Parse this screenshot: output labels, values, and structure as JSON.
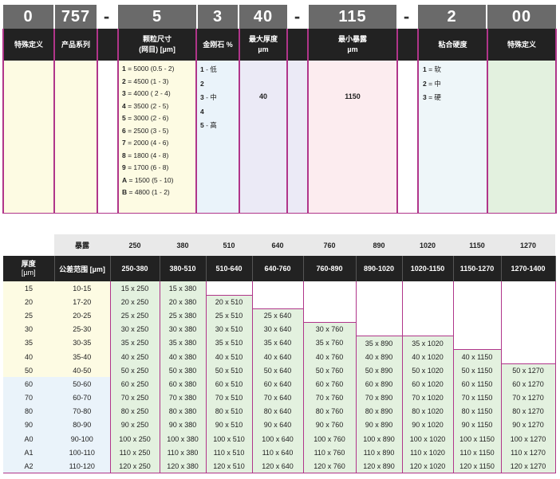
{
  "code": {
    "segments": [
      "0",
      "757",
      "-",
      "5",
      "3",
      "40",
      "-",
      "115",
      "-",
      "2",
      "00"
    ]
  },
  "headers": {
    "special1": "特殊定义",
    "series": "产品系列",
    "grit_title": "颗粒尺寸",
    "grit_sub": "(网目) [µm]",
    "diamond": "金刚石 %",
    "maxthick_title": "最大厚度",
    "maxthick_unit": "µm",
    "minexp_title": "最小暴露",
    "minexp_unit": "µm",
    "hardness": "粘合硬度",
    "special2": "特殊定义"
  },
  "grit_list": [
    {
      "code": "1",
      "text": " = 5000 (0.5 - 2)"
    },
    {
      "code": "2",
      "text": " = 4500 (1 - 3)"
    },
    {
      "code": "3",
      "text": " = 4000 ( 2 - 4)"
    },
    {
      "code": "4",
      "text": " = 3500 (2 - 5)"
    },
    {
      "code": "5",
      "text": " = 3000 (2 - 6)"
    },
    {
      "code": "6",
      "text": " = 2500 (3 - 5)"
    },
    {
      "code": "7",
      "text": " = 2000 (4 - 6)"
    },
    {
      "code": "8",
      "text": " = 1800 (4 - 8)"
    },
    {
      "code": "9",
      "text": " = 1700 (6 - 8)"
    },
    {
      "code": "A",
      "text": " = 1500 (5 - 10)"
    },
    {
      "code": "B",
      "text": " = 4800 (1 - 2)"
    }
  ],
  "diamond_list": [
    {
      "code": "1",
      "text": " - 低"
    },
    {
      "code": "2",
      "text": ""
    },
    {
      "code": "3",
      "text": " - 中"
    },
    {
      "code": "4",
      "text": ""
    },
    {
      "code": "5",
      "text": " - 高"
    }
  ],
  "maxthick_value": "40",
  "minexp_value": "1150",
  "hardness_list": [
    {
      "code": "1",
      "text": " = 软"
    },
    {
      "code": "2",
      "text": " = 中"
    },
    {
      "code": "3",
      "text": " = 硬"
    }
  ],
  "table": {
    "exposure_label": "暴露",
    "exposures": [
      "250",
      "380",
      "510",
      "640",
      "760",
      "890",
      "1020",
      "1150",
      "1270"
    ],
    "thickness_label": "厚度",
    "thickness_unit": "[µm]",
    "tolerance_label": "公差范围 [µm]",
    "ranges": [
      "250-380",
      "380-510",
      "510-640",
      "640-760",
      "760-890",
      "890-1020",
      "1020-1150",
      "1150-1270",
      "1270-1400"
    ],
    "rows": [
      {
        "t": "15",
        "tol": "10-15",
        "cells": [
          "15 x 250",
          "15 x 380",
          "",
          "",
          "",
          "",
          "",
          "",
          ""
        ]
      },
      {
        "t": "20",
        "tol": "17-20",
        "cells": [
          "20 x 250",
          "20 x 380",
          "20 x 510",
          "",
          "",
          "",
          "",
          "",
          ""
        ]
      },
      {
        "t": "25",
        "tol": "20-25",
        "cells": [
          "25 x 250",
          "25 x 380",
          "25 x 510",
          "25 x 640",
          "",
          "",
          "",
          "",
          ""
        ]
      },
      {
        "t": "30",
        "tol": "25-30",
        "cells": [
          "30 x 250",
          "30 x 380",
          "30 x 510",
          "30 x 640",
          "30 x 760",
          "",
          "",
          "",
          ""
        ]
      },
      {
        "t": "35",
        "tol": "30-35",
        "cells": [
          "35 x 250",
          "35 x 380",
          "35 x 510",
          "35 x 640",
          "35 x 760",
          "35 x 890",
          "35 x 1020",
          "",
          ""
        ]
      },
      {
        "t": "40",
        "tol": "35-40",
        "cells": [
          "40 x 250",
          "40 x 380",
          "40 x 510",
          "40 x 640",
          "40 x 760",
          "40 x 890",
          "40 x 1020",
          "40 x 1150",
          ""
        ]
      },
      {
        "t": "50",
        "tol": "40-50",
        "cells": [
          "50 x 250",
          "50 x 380",
          "50 x 510",
          "50 x 640",
          "50 x 760",
          "50 x 890",
          "50 x 1020",
          "50 x 1150",
          "50 x 1270"
        ]
      },
      {
        "t": "60",
        "tol": "50-60",
        "cells": [
          "60 x 250",
          "60 x 380",
          "60 x 510",
          "60 x 640",
          "60 x 760",
          "60 x 890",
          "60 x 1020",
          "60 x 1150",
          "60 x 1270"
        ]
      },
      {
        "t": "70",
        "tol": "60-70",
        "cells": [
          "70 x 250",
          "70 x 380",
          "70 x 510",
          "70 x 640",
          "70 x 760",
          "70 x 890",
          "70 x 1020",
          "70 x 1150",
          "70 x 1270"
        ]
      },
      {
        "t": "80",
        "tol": "70-80",
        "cells": [
          "80 x 250",
          "80 x 380",
          "80 x 510",
          "80 x 640",
          "80 x 760",
          "80 x 890",
          "80 x 1020",
          "80 x 1150",
          "80 x 1270"
        ]
      },
      {
        "t": "90",
        "tol": "80-90",
        "cells": [
          "90 x 250",
          "90 x 380",
          "90 x 510",
          "90 x 640",
          "90 x 760",
          "90 x 890",
          "90 x 1020",
          "90 x 1150",
          "90 x 1270"
        ]
      },
      {
        "t": "A0",
        "tol": "90-100",
        "cells": [
          "100 x 250",
          "100 x 380",
          "100 x 510",
          "100 x 640",
          "100 x 760",
          "100 x 890",
          "100 x 1020",
          "100 x 1150",
          "100 x 1270"
        ]
      },
      {
        "t": "A1",
        "tol": "100-110",
        "cells": [
          "110 x 250",
          "110 x 380",
          "110 x 510",
          "110 x 640",
          "110 x 760",
          "110 x 890",
          "110 x 1020",
          "110 x 1150",
          "110 x 1270"
        ]
      },
      {
        "t": "A2",
        "tol": "110-120",
        "cells": [
          "120 x 250",
          "120 x 380",
          "120 x 510",
          "120 x 640",
          "120 x 760",
          "120 x 890",
          "120 x 1020",
          "120 x 1150",
          "120 x 1270"
        ]
      }
    ]
  }
}
